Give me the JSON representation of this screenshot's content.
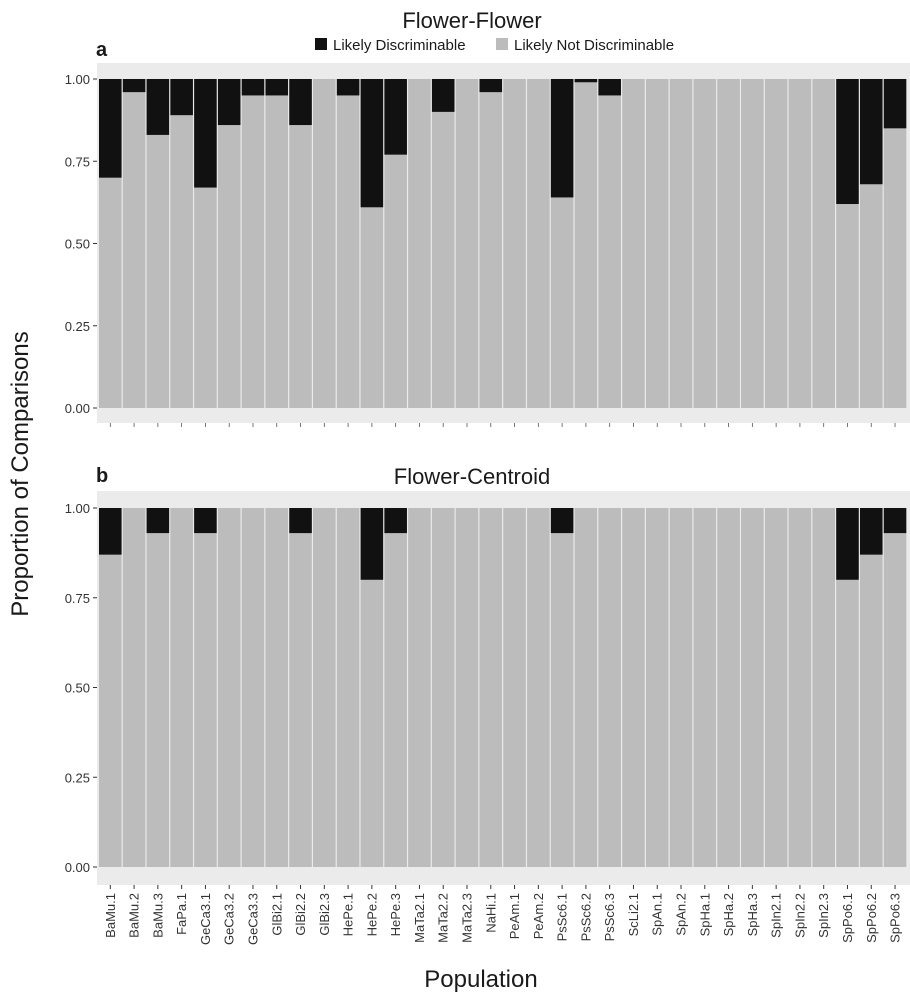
{
  "colors": {
    "discriminable": "#111111",
    "not_discriminable": "#bcbcbc",
    "panel_background": "#ebebeb",
    "text": "#1a1a1a"
  },
  "legend": {
    "items": [
      {
        "label": "Likely Discriminable",
        "color": "#111111"
      },
      {
        "label": "Likely Not Discriminable",
        "color": "#bcbcbc"
      }
    ],
    "placement": "top-center"
  },
  "chart_data": [
    {
      "type": "bar",
      "stacked": true,
      "panel_label": "a",
      "title": "Flower-Flower",
      "ylabel": "Proportion of Comparisons",
      "xlabel": "Population",
      "ylim": [
        0,
        1
      ],
      "y_ticks": [
        "0.00",
        "0.25",
        "0.50",
        "0.75",
        "1.00"
      ],
      "categories": [
        "BaMu.1",
        "BaMu.2",
        "BaMu.3",
        "FaPa.1",
        "GeCa3.1",
        "GeCa3.2",
        "GeCa3.3",
        "GlBi2.1",
        "GlBi2.2",
        "GlBi2.3",
        "HePe.1",
        "HePe.2",
        "HePe.3",
        "MaTa2.1",
        "MaTa2.2",
        "MaTa2.3",
        "NaHi.1",
        "PeAm.1",
        "PeAm.2",
        "PsSc6.1",
        "PsSc6.2",
        "PsSc6.3",
        "ScLi2.1",
        "SpAn.1",
        "SpAn.2",
        "SpHa.1",
        "SpHa.2",
        "SpHa.3",
        "SpIn2.1",
        "SpIn2.2",
        "SpIn2.3",
        "SpPo6.1",
        "SpPo6.2",
        "SpPo6.3"
      ],
      "series": [
        {
          "name": "Likely Not Discriminable",
          "values": [
            0.7,
            0.96,
            0.83,
            0.89,
            0.67,
            0.86,
            0.95,
            0.95,
            0.86,
            1.0,
            0.95,
            0.61,
            0.77,
            1.0,
            0.9,
            1.0,
            0.96,
            1.0,
            1.0,
            0.64,
            0.99,
            0.95,
            1.0,
            1.0,
            1.0,
            1.0,
            1.0,
            1.0,
            1.0,
            1.0,
            1.0,
            0.62,
            0.68,
            0.85
          ]
        },
        {
          "name": "Likely Discriminable",
          "values": [
            0.3,
            0.04,
            0.17,
            0.11,
            0.33,
            0.14,
            0.05,
            0.05,
            0.14,
            0.0,
            0.05,
            0.39,
            0.23,
            0.0,
            0.1,
            0.0,
            0.04,
            0.0,
            0.0,
            0.36,
            0.01,
            0.05,
            0.0,
            0.0,
            0.0,
            0.0,
            0.0,
            0.0,
            0.0,
            0.0,
            0.0,
            0.38,
            0.32,
            0.15
          ]
        }
      ]
    },
    {
      "type": "bar",
      "stacked": true,
      "panel_label": "b",
      "title": "Flower-Centroid",
      "ylabel": "Proportion of Comparisons",
      "xlabel": "Population",
      "ylim": [
        0,
        1
      ],
      "y_ticks": [
        "0.00",
        "0.25",
        "0.50",
        "0.75",
        "1.00"
      ],
      "categories": [
        "BaMu.1",
        "BaMu.2",
        "BaMu.3",
        "FaPa.1",
        "GeCa3.1",
        "GeCa3.2",
        "GeCa3.3",
        "GlBi2.1",
        "GlBi2.2",
        "GlBi2.3",
        "HePe.1",
        "HePe.2",
        "HePe.3",
        "MaTa2.1",
        "MaTa2.2",
        "MaTa2.3",
        "NaHi.1",
        "PeAm.1",
        "PeAm.2",
        "PsSc6.1",
        "PsSc6.2",
        "PsSc6.3",
        "ScLi2.1",
        "SpAn.1",
        "SpAn.2",
        "SpHa.1",
        "SpHa.2",
        "SpHa.3",
        "SpIn2.1",
        "SpIn2.2",
        "SpIn2.3",
        "SpPo6.1",
        "SpPo6.2",
        "SpPo6.3"
      ],
      "series": [
        {
          "name": "Likely Not Discriminable",
          "values": [
            0.87,
            1.0,
            0.93,
            1.0,
            0.93,
            1.0,
            1.0,
            1.0,
            0.93,
            1.0,
            1.0,
            0.8,
            0.93,
            1.0,
            1.0,
            1.0,
            1.0,
            1.0,
            1.0,
            0.93,
            1.0,
            1.0,
            1.0,
            1.0,
            1.0,
            1.0,
            1.0,
            1.0,
            1.0,
            1.0,
            1.0,
            0.8,
            0.87,
            0.93
          ]
        },
        {
          "name": "Likely Discriminable",
          "values": [
            0.13,
            0.0,
            0.07,
            0.0,
            0.07,
            0.0,
            0.0,
            0.0,
            0.07,
            0.0,
            0.0,
            0.2,
            0.07,
            0.0,
            0.0,
            0.0,
            0.0,
            0.0,
            0.0,
            0.07,
            0.0,
            0.0,
            0.0,
            0.0,
            0.0,
            0.0,
            0.0,
            0.0,
            0.0,
            0.0,
            0.0,
            0.2,
            0.13,
            0.07
          ]
        }
      ]
    }
  ]
}
